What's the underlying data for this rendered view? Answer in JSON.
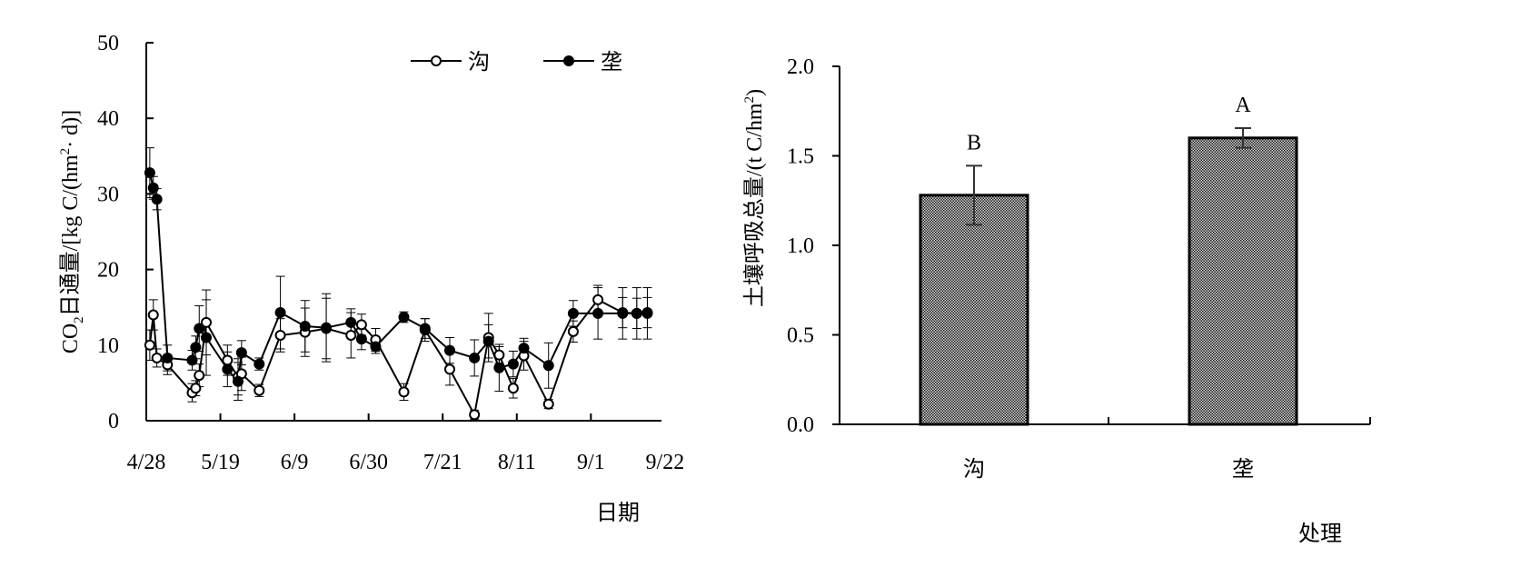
{
  "chart_data": [
    {
      "type": "line",
      "xlabel": "日期",
      "ylabel_parts": {
        "pre": "CO",
        "sub": "2",
        "mid": "日通量/[kg C/(hm",
        "sup": "2",
        "post": "· d)]"
      },
      "ylim": [
        0,
        50
      ],
      "yticks": [
        0,
        10,
        20,
        30,
        40,
        50
      ],
      "xlim": [
        0,
        146
      ],
      "xticks": [
        {
          "x": 0,
          "label": "4/28"
        },
        {
          "x": 21,
          "label": "5/19"
        },
        {
          "x": 42,
          "label": "6/9"
        },
        {
          "x": 63,
          "label": "6/30"
        },
        {
          "x": 84,
          "label": "7/21"
        },
        {
          "x": 105,
          "label": "8/11"
        },
        {
          "x": 126,
          "label": "9/1"
        },
        {
          "x": 147,
          "label": "9/22"
        }
      ],
      "legend_position": "top-right",
      "series": [
        {
          "name": "沟",
          "marker": "open",
          "x": [
            1,
            2,
            3,
            6,
            13,
            14,
            15,
            17,
            23,
            26,
            27,
            32,
            38,
            45,
            51,
            58,
            61,
            65,
            73,
            79,
            86,
            93,
            97,
            100,
            104,
            107,
            114,
            121,
            128,
            135,
            139,
            142
          ],
          "y": [
            10,
            14,
            8.3,
            7.4,
            3.7,
            4.3,
            6,
            13,
            8,
            5.8,
            6.2,
            4,
            11.3,
            11.7,
            12.2,
            11.3,
            12.7,
            10.7,
            3.8,
            12,
            6.8,
            0.8,
            11,
            8.7,
            4.3,
            8.6,
            2.2,
            11.8,
            16,
            14.3,
            14.2,
            14.3
          ],
          "err": [
            2,
            2,
            1.2,
            1.3,
            1.2,
            1,
            1.5,
            4.3,
            2,
            2.4,
            2.2,
            0.8,
            2.2,
            3.2,
            4,
            3,
            1.4,
            1.5,
            1.1,
            1.5,
            2.1,
            0.6,
            3.2,
            1.1,
            1.3,
            1.9,
            0.6,
            1.4,
            1.9,
            2,
            2,
            2
          ]
        },
        {
          "name": "垄",
          "marker": "filled",
          "x": [
            1,
            2,
            3,
            6,
            13,
            14,
            15,
            17,
            23,
            26,
            27,
            32,
            38,
            45,
            51,
            58,
            61,
            65,
            73,
            79,
            86,
            93,
            97,
            100,
            104,
            107,
            114,
            121,
            128,
            135,
            139,
            142
          ],
          "y": [
            32.8,
            30.8,
            29.3,
            8.3,
            8,
            9.7,
            12.2,
            11,
            6.8,
            5.2,
            9,
            7.5,
            14.3,
            12.5,
            12.3,
            13,
            10.8,
            9.8,
            13.7,
            12.2,
            9.3,
            8.3,
            10.5,
            7,
            7.5,
            9.6,
            7.3,
            14.2,
            14.2,
            14.2,
            14.2,
            14.2
          ],
          "err": [
            3.3,
            1.5,
            1.4,
            1.7,
            1.3,
            1.5,
            3,
            5,
            2.3,
            2.5,
            1.6,
            0.8,
            4.8,
            3.4,
            4.5,
            1.8,
            1.4,
            0.9,
            0.7,
            1.3,
            1.7,
            2.4,
            2.2,
            3.1,
            1.7,
            1.3,
            3,
            1.7,
            3.4,
            3.4,
            3.4,
            3.4
          ]
        }
      ]
    },
    {
      "type": "bar",
      "xlabel": "处理",
      "ylabel_parts": {
        "pre": "土壤呼吸总量/(t C/hm",
        "sup": "2",
        "post": ")"
      },
      "ylim": [
        0,
        2
      ],
      "yticks": [
        "0.0",
        "0.5",
        "1.0",
        "1.5",
        "2.0"
      ],
      "categories": [
        "沟",
        "垄"
      ],
      "values": [
        1.28,
        1.6
      ],
      "errors": [
        0.165,
        0.055
      ],
      "significance": [
        "B",
        "A"
      ],
      "bar_fill": "#8c8c8c"
    }
  ]
}
